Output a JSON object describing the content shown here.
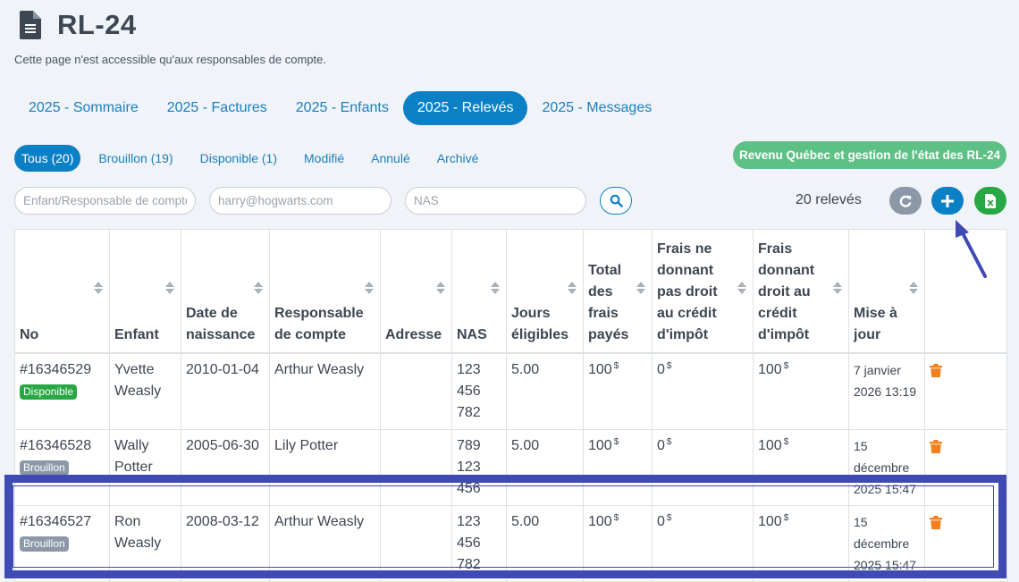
{
  "header": {
    "title": "RL-24",
    "subtitle": "Cette page n'est accessible qu'aux responsables de compte."
  },
  "year_tabs": [
    {
      "label": "2025 - Sommaire"
    },
    {
      "label": "2025 - Factures"
    },
    {
      "label": "2025 - Enfants"
    },
    {
      "label": "2025 - Relevés",
      "active": true
    },
    {
      "label": "2025 - Messages"
    }
  ],
  "status_tabs": [
    {
      "label": "Tous (20)",
      "active": true
    },
    {
      "label": "Brouillon (19)"
    },
    {
      "label": "Disponible (1)"
    },
    {
      "label": "Modifié"
    },
    {
      "label": "Annulé"
    },
    {
      "label": "Archivé"
    }
  ],
  "rq_button": "Revenu Québec et gestion de l'état des RL-24",
  "filters": {
    "child_placeholder": "Enfant/Responsable de compte",
    "email_placeholder": "harry@hogwarts.com",
    "nas_placeholder": "NAS"
  },
  "count_label": "20 relevés",
  "icons": {
    "page": "document-icon",
    "search": "search-icon",
    "refresh": "refresh-icon",
    "add": "plus-icon",
    "excel": "excel-icon",
    "delete": "trash-icon"
  },
  "colors": {
    "primary": "#0b80c6",
    "success": "#28a745",
    "rq_button": "#5dc185",
    "draft_badge": "#8c98a8",
    "trash": "#f07f1c",
    "highlight": "#3f4ab5"
  },
  "table": {
    "columns": [
      "No",
      "Enfant",
      "Date de naissance",
      "Responsable de compte",
      "Adresse",
      "NAS",
      "Jours éligibles",
      "Total des frais payés",
      "Frais ne donnant pas droit au crédit d'impôt",
      "Frais donnant droit au crédit d'impôt",
      "Mise à jour"
    ],
    "currency": "$",
    "rows": [
      {
        "no": "#16346529",
        "status": "Disponible",
        "enfant": "Yvette Weasly",
        "naissance": "2010-01-04",
        "responsable": "Arthur Weasly",
        "adresse": "",
        "nas": "123 456 782",
        "jours": "5.00",
        "total": "100",
        "non_credit": "0",
        "credit": "100",
        "maj": "7 janvier 2026 13:19"
      },
      {
        "no": "#16346528",
        "status": "Brouillon",
        "enfant": "Wally Potter",
        "naissance": "2005-06-30",
        "responsable": "Lily Potter",
        "adresse": "",
        "nas": "789 123 456",
        "jours": "5.00",
        "total": "100",
        "non_credit": "0",
        "credit": "100",
        "maj": "15 décembre 2025 15:47"
      },
      {
        "no": "#16346527",
        "status": "Brouillon",
        "enfant": "Ron Weasly",
        "naissance": "2008-03-12",
        "responsable": "Arthur Weasly",
        "adresse": "",
        "nas": "123 456 782",
        "jours": "5.00",
        "total": "100",
        "non_credit": "0",
        "credit": "100",
        "maj": "15 décembre 2025 15:47"
      }
    ]
  }
}
